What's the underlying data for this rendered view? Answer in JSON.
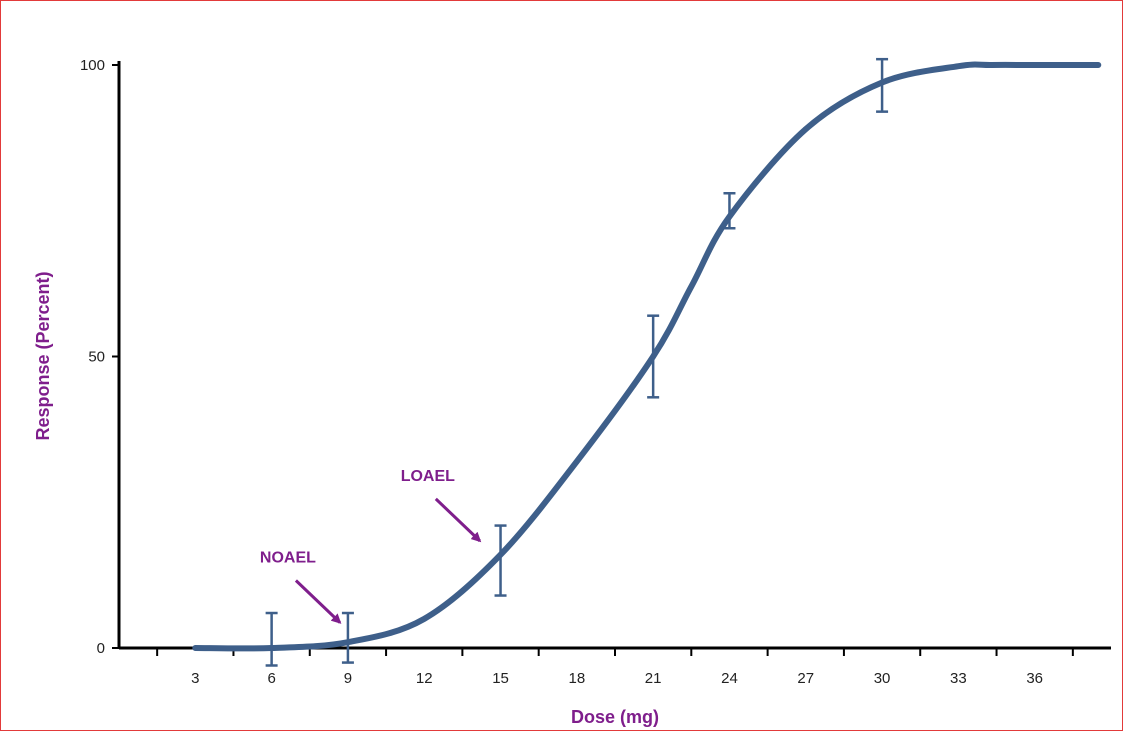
{
  "chart_data": {
    "type": "line",
    "title": "",
    "xlabel": "Dose (mg)",
    "ylabel": "Response (Percent)",
    "x_ticks": [
      "3",
      "6",
      "9",
      "12",
      "15",
      "18",
      "21",
      "24",
      "27",
      "30",
      "33",
      "36"
    ],
    "y_ticks": [
      "0",
      "50",
      "100"
    ],
    "xlim": [
      0,
      39
    ],
    "ylim": [
      0,
      100
    ],
    "grid": false,
    "series": [
      {
        "color": "#3e5f8a",
        "curve": {
          "x": [
            3,
            6,
            9,
            12,
            15,
            18,
            21,
            22.5,
            24,
            27,
            30,
            33,
            34.3,
            36,
            38.5
          ],
          "y": [
            0,
            0,
            1,
            5,
            16,
            32,
            50,
            62,
            74,
            89,
            97,
            99.8,
            100,
            100,
            100
          ]
        },
        "error_bars": [
          {
            "x": 6,
            "y": 0,
            "low": -3,
            "high": 6
          },
          {
            "x": 9,
            "y": 1,
            "low": -2.5,
            "high": 6
          },
          {
            "x": 15,
            "y": 15,
            "low": 9,
            "high": 21
          },
          {
            "x": 21,
            "y": 50,
            "low": 43,
            "high": 57
          },
          {
            "x": 24,
            "y": 75,
            "low": 72,
            "high": 78
          },
          {
            "x": 30,
            "y": 97,
            "low": 92,
            "high": 101
          }
        ]
      }
    ],
    "annotations": [
      {
        "text": "NOAEL",
        "points_to": {
          "x": 9,
          "y": 3
        }
      },
      {
        "text": "LOAEL",
        "points_to": {
          "x": 14.5,
          "y": 17
        }
      }
    ],
    "colors": {
      "curve": "#3e5f8a",
      "annotation": "#7f1e8c",
      "frame": "#e23a3a"
    }
  }
}
